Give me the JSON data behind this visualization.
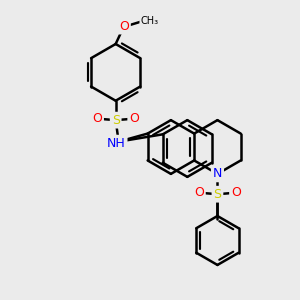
{
  "background_color": "#ebebeb",
  "line_color": "#000000",
  "bond_width": 1.8,
  "atom_colors": {
    "N": "#0000FF",
    "O": "#FF0000",
    "S": "#CCCC00",
    "C": "#000000",
    "H": "#555555"
  },
  "font_size": 8,
  "methoxy_O_color": "#FF0000",
  "methoxy_text": "O",
  "methoxy_CH3": "CH₃"
}
